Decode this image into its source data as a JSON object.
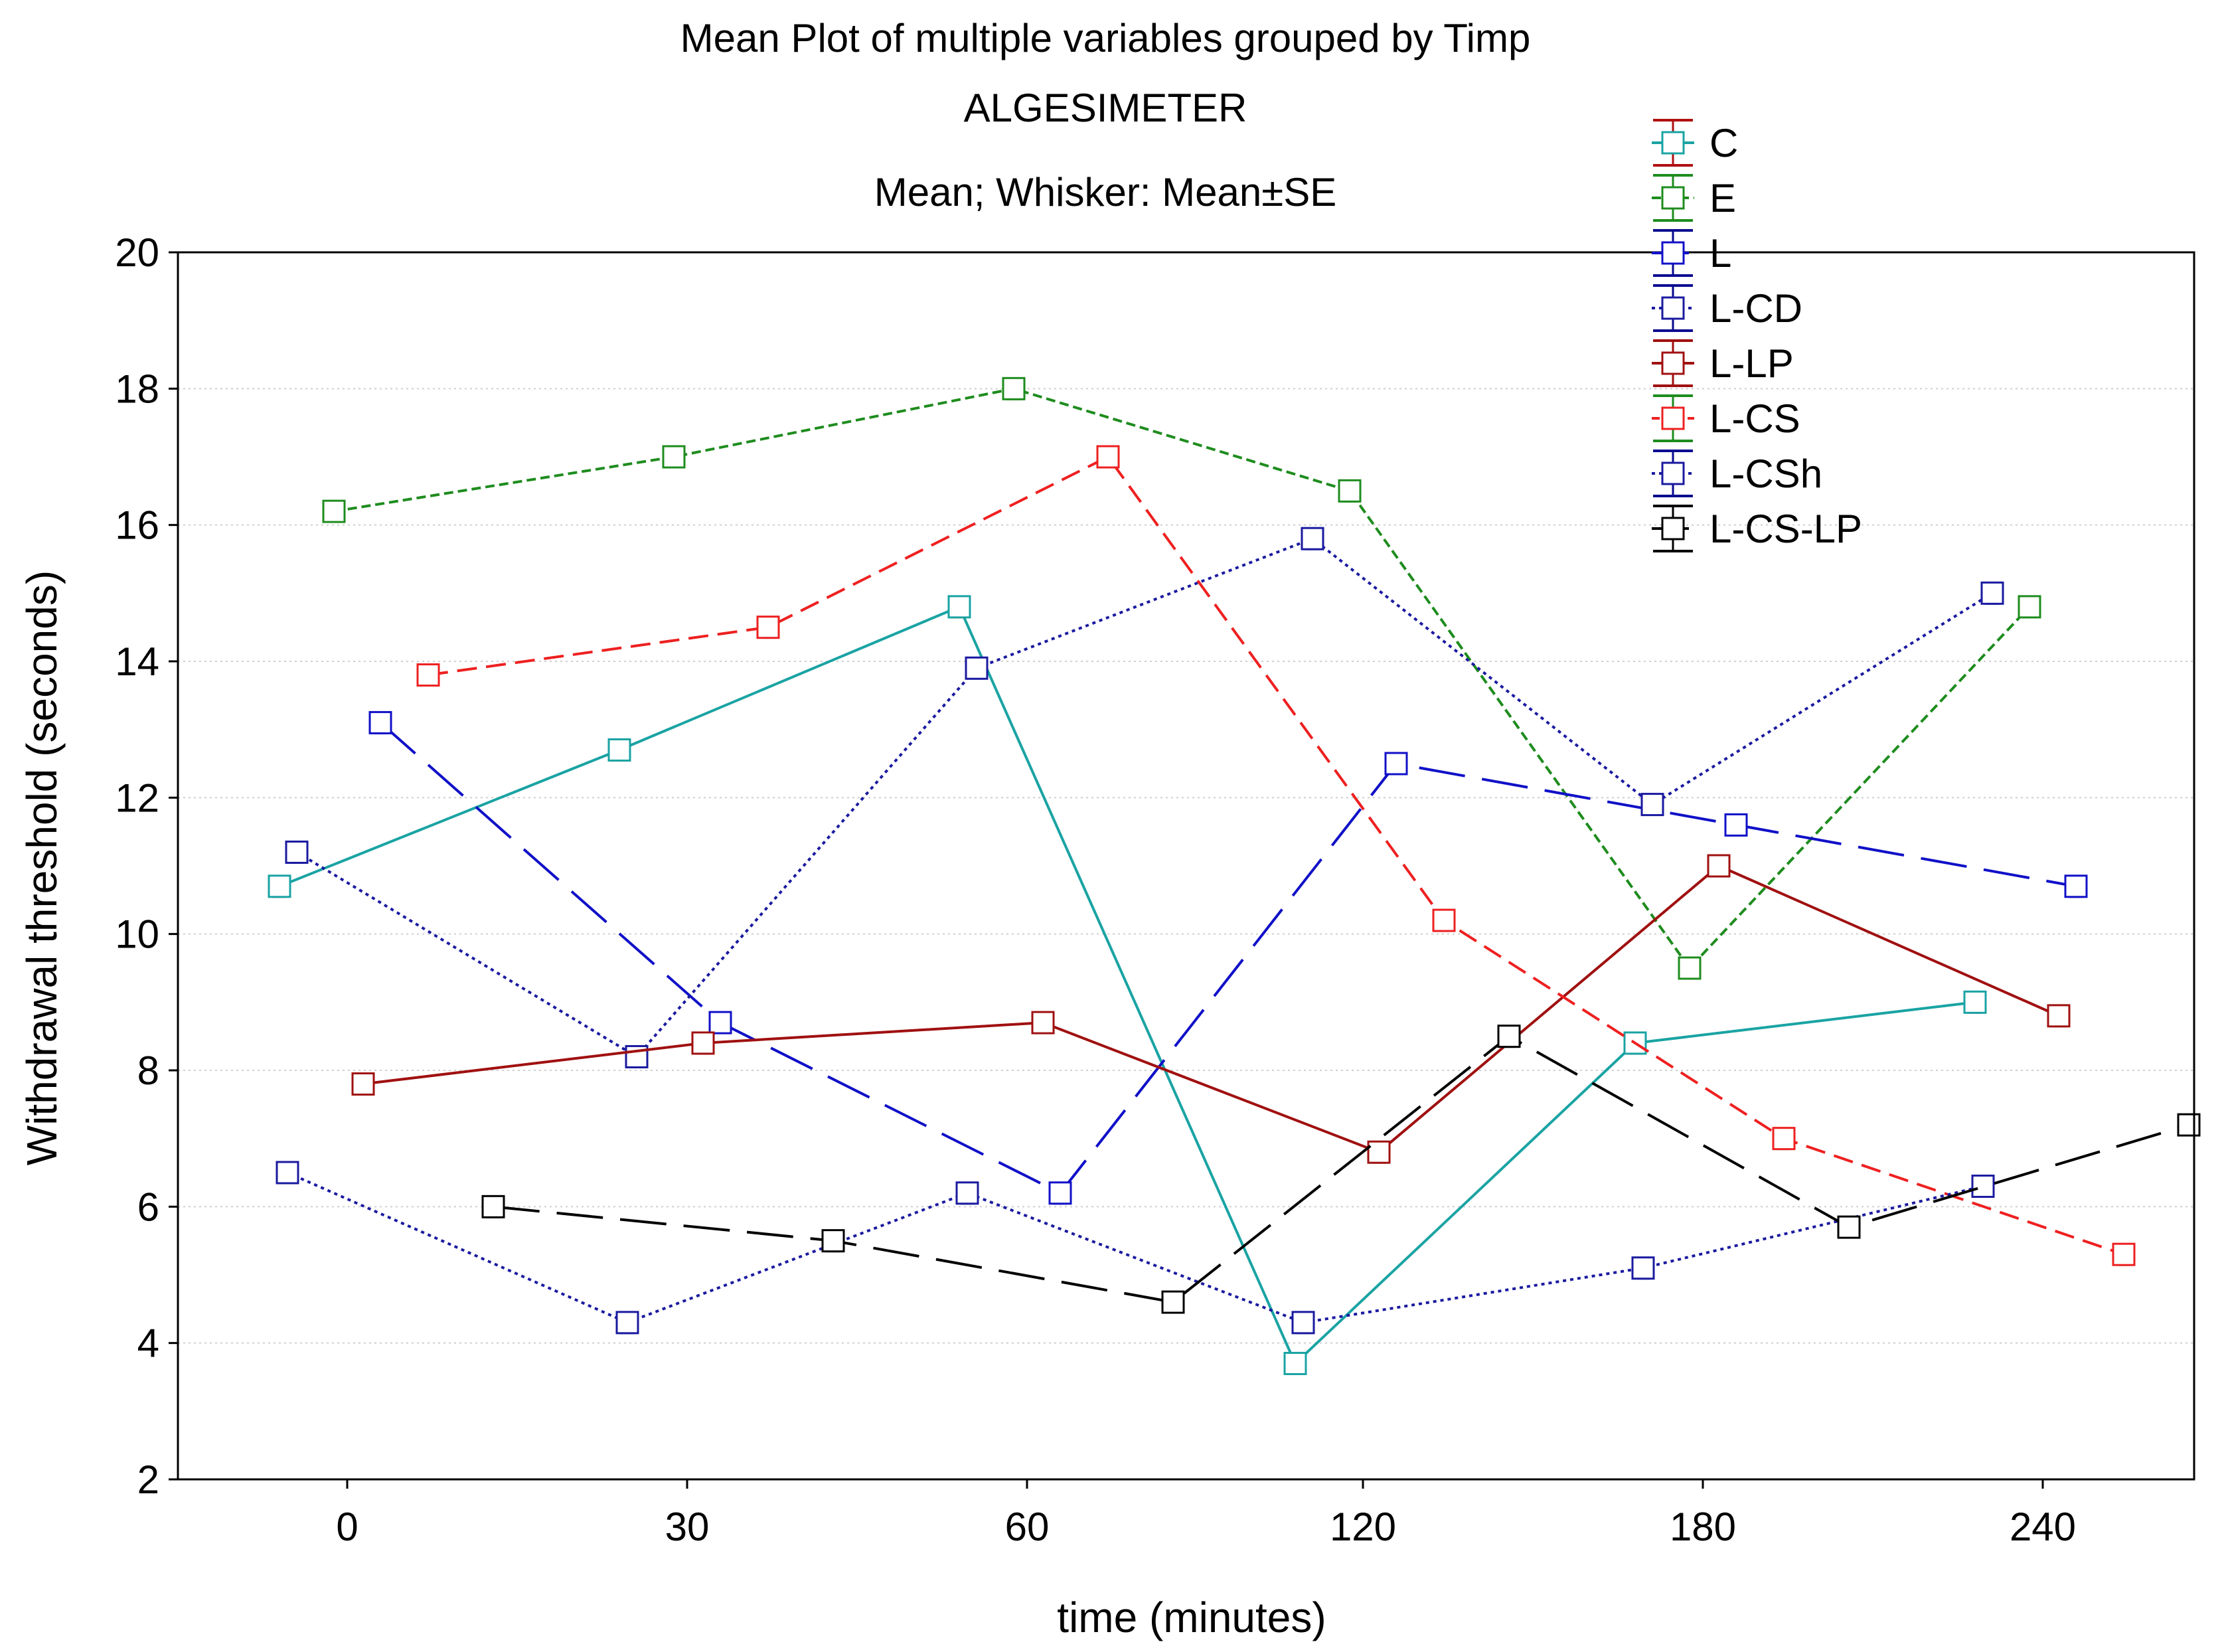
{
  "chart_data": {
    "type": "line",
    "title": "Mean Plot of multiple variables grouped by  Timp",
    "subtitle": "ALGESIMETER",
    "subtitle2": "Mean; Whisker: Mean±SE",
    "xlabel": "time (minutes)",
    "ylabel": "Withdrawal threshold (seconds)",
    "categories": [
      "0",
      "30",
      "60",
      "120",
      "180",
      "240"
    ],
    "ylim": [
      2,
      20
    ],
    "yticks": [
      2,
      4,
      6,
      8,
      10,
      12,
      14,
      16,
      18,
      20
    ],
    "grid": true,
    "legend_position": "top-right",
    "series": [
      {
        "name": "C",
        "color": "#1aa3a3",
        "dash": "solid",
        "bar_color": "#b01010",
        "values": [
          10.7,
          12.7,
          14.8,
          3.7,
          8.4,
          9.0
        ],
        "se": [
          0.15,
          0.15,
          0.15,
          0.15,
          0.15,
          0.15
        ]
      },
      {
        "name": "E",
        "color": "#1e8c1e",
        "dash": "dense",
        "bar_color": "#1e8c1e",
        "values": [
          16.2,
          17.0,
          18.0,
          16.5,
          9.5,
          14.8
        ],
        "se": [
          0.15,
          0.15,
          0.15,
          0.15,
          0.15,
          0.15
        ]
      },
      {
        "name": "L",
        "color": "#1010c8",
        "dash": "longdash",
        "bar_color": "#0a0a90",
        "values": [
          13.1,
          8.7,
          6.2,
          12.5,
          11.6,
          10.7
        ],
        "se": [
          0.15,
          0.15,
          0.15,
          0.15,
          0.15,
          0.15
        ]
      },
      {
        "name": "L-CD",
        "color": "#1a1aa0",
        "dash": "dot",
        "bar_color": "#0a0a90",
        "values": [
          11.2,
          8.2,
          13.9,
          15.8,
          11.9,
          15.0
        ],
        "se": [
          0.15,
          0.15,
          0.15,
          0.15,
          0.15,
          0.15
        ]
      },
      {
        "name": "L-LP",
        "color": "#a01010",
        "dash": "solid",
        "bar_color": "#a01010",
        "values": [
          7.8,
          8.4,
          8.7,
          6.8,
          11.0,
          8.8
        ],
        "se": [
          0.15,
          0.15,
          0.15,
          0.15,
          0.15,
          0.15
        ]
      },
      {
        "name": "L-CS",
        "color": "#ee2020",
        "dash": "dash",
        "bar_color": "#1e8c1e",
        "values": [
          13.8,
          14.5,
          17.0,
          10.2,
          7.0,
          5.3
        ],
        "se": [
          0.15,
          0.15,
          0.15,
          0.15,
          0.15,
          0.15
        ]
      },
      {
        "name": "L-CSh",
        "color": "#1a1aa0",
        "dash": "dot",
        "bar_color": "#0a0a90",
        "values": [
          6.5,
          4.3,
          6.2,
          4.3,
          5.1,
          6.3
        ],
        "se": [
          0.15,
          0.15,
          0.15,
          0.15,
          0.15,
          0.15
        ]
      },
      {
        "name": "L-CS-LP",
        "color": "#000000",
        "dash": "longdash",
        "bar_color": "#000000",
        "values": [
          6.0,
          5.5,
          4.6,
          8.5,
          5.7,
          7.2
        ],
        "se": [
          0.15,
          0.15,
          0.15,
          0.15,
          0.15,
          0.15
        ]
      }
    ]
  }
}
